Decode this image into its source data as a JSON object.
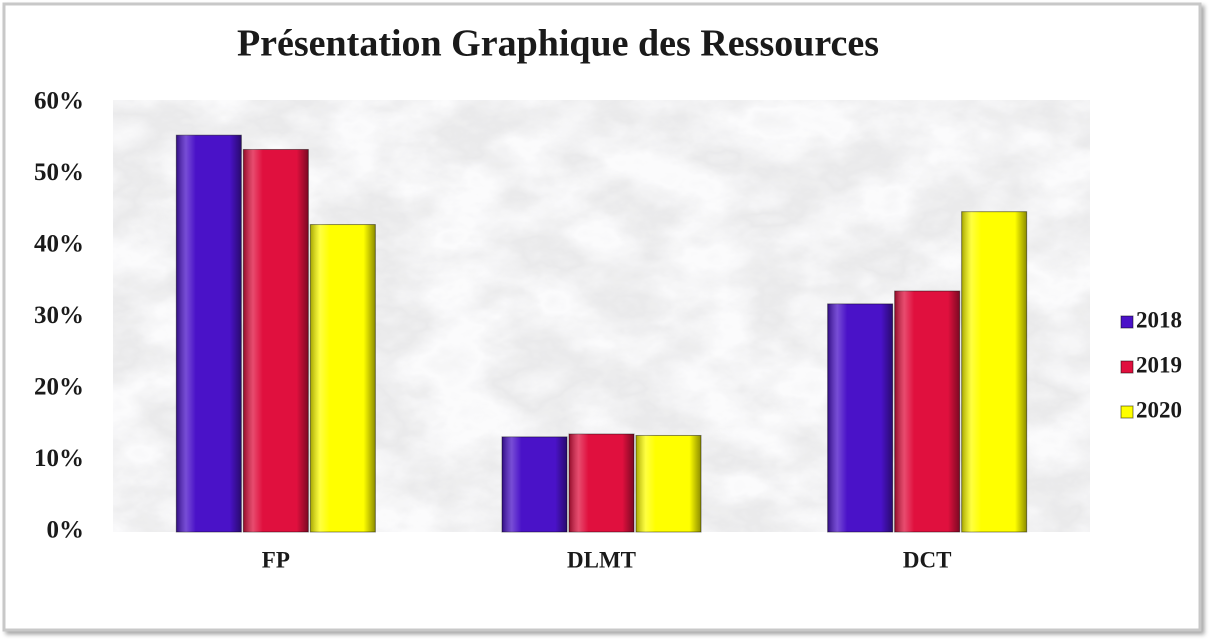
{
  "chart_data": {
    "type": "bar",
    "title": "Présentation Graphique des Ressources",
    "categories": [
      "FP",
      "DLMT",
      "DCT"
    ],
    "series": [
      {
        "name": "2018",
        "color": "#4a12c8",
        "values": [
          55.5,
          13.3,
          31.9
        ]
      },
      {
        "name": "2019",
        "color": "#e0103e",
        "values": [
          53.5,
          13.7,
          33.7
        ]
      },
      {
        "name": "2020",
        "color": "#ffff00",
        "values": [
          43,
          13.5,
          44.8
        ]
      }
    ],
    "ylim": [
      0,
      60
    ],
    "yticks": [
      {
        "value": 0,
        "label": "0%"
      },
      {
        "value": 10,
        "label": "10%"
      },
      {
        "value": 20,
        "label": "20%"
      },
      {
        "value": 30,
        "label": "30%"
      },
      {
        "value": 40,
        "label": "40%"
      },
      {
        "value": 50,
        "label": "50%"
      },
      {
        "value": 60,
        "label": "60%"
      }
    ],
    "grid": false,
    "legend": "right"
  }
}
